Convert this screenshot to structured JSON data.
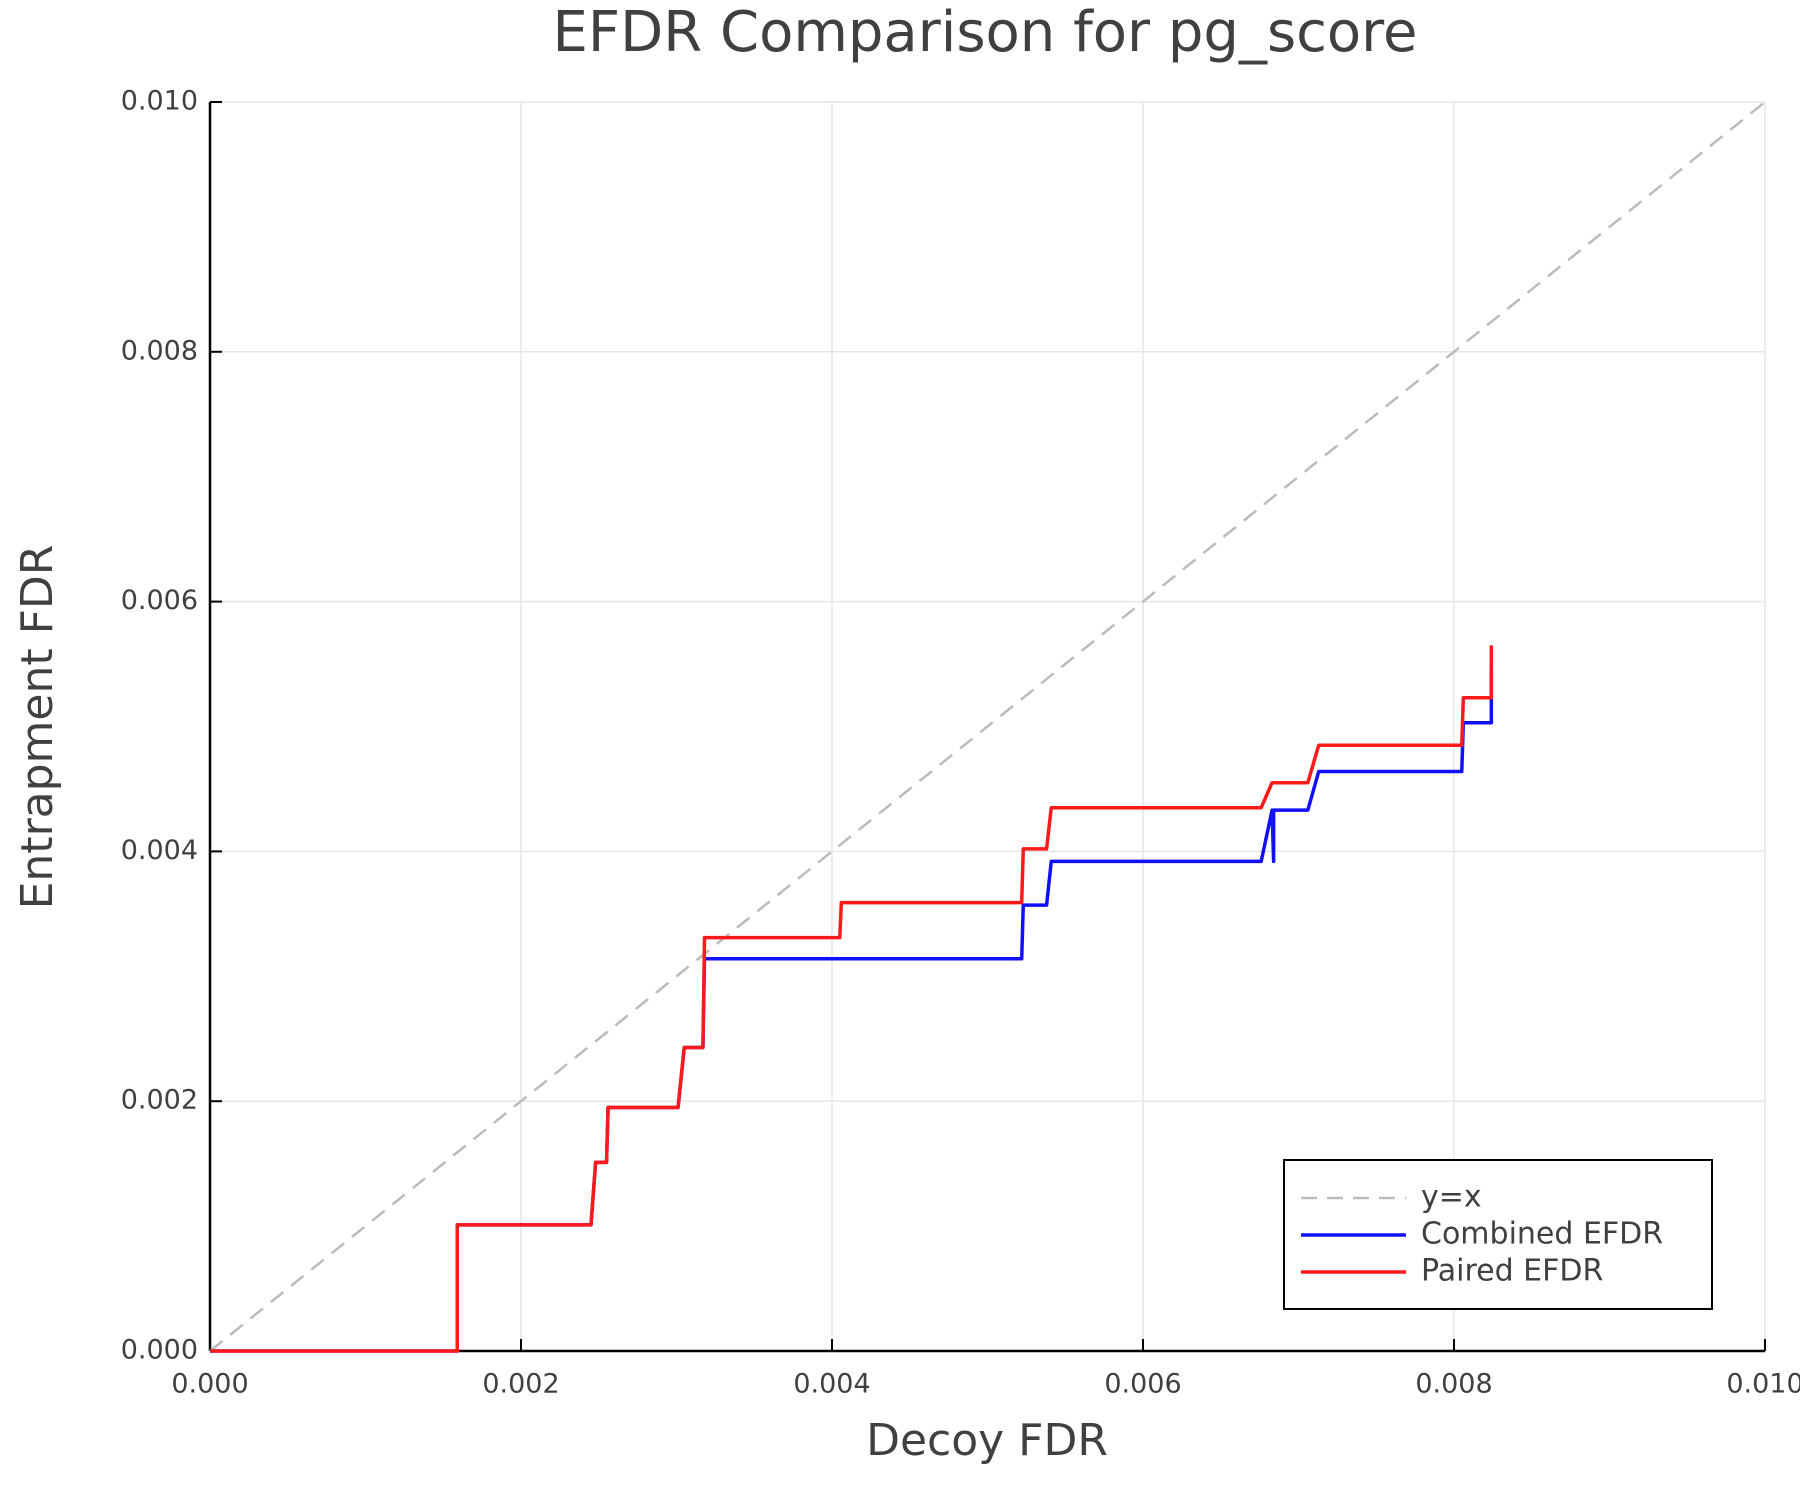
{
  "chart_data": {
    "type": "line",
    "title": "EFDR Comparison for pg_score",
    "x_label": "Decoy FDR",
    "y_label": "Entrapment FDR",
    "xlim": [
      0,
      0.01
    ],
    "ylim": [
      0,
      0.01
    ],
    "xticks": [
      {
        "value": 0,
        "label": "0.000"
      },
      {
        "value": 0.002,
        "label": "0.002"
      },
      {
        "value": 0.004,
        "label": "0.004"
      },
      {
        "value": 0.006,
        "label": "0.006"
      },
      {
        "value": 0.008,
        "label": "0.008"
      },
      {
        "value": 0.01,
        "label": "0.010"
      }
    ],
    "yticks": [
      {
        "value": 0,
        "label": "0.000"
      },
      {
        "value": 0.002,
        "label": "0.002"
      },
      {
        "value": 0.004,
        "label": "0.004"
      },
      {
        "value": 0.006,
        "label": "0.006"
      },
      {
        "value": 0.008,
        "label": "0.008"
      },
      {
        "value": 0.01,
        "label": "0.010"
      }
    ],
    "grid": true,
    "legend": "bottom-right",
    "series": [
      {
        "name": "y=x",
        "color": "#bbbbbb",
        "dash": true,
        "x": [
          0,
          0.01
        ],
        "values": [
          0,
          0.01
        ]
      },
      {
        "name": "Combined EFDR",
        "color": "#1010ff",
        "dash": false,
        "x": [
          0,
          0.00159,
          0.00159,
          0.00245,
          0.00248,
          0.00255,
          0.00256,
          0.00301,
          0.00305,
          0.00317,
          0.00318,
          0.00522,
          0.00523,
          0.00538,
          0.00541,
          0.00676,
          0.00683,
          0.00684,
          0.00684,
          0.00706,
          0.00713,
          0.00805,
          0.00806,
          0.00824,
          0.00824
        ],
        "values": [
          0,
          0,
          0.00101,
          0.00101,
          0.00151,
          0.00151,
          0.00195,
          0.00195,
          0.00243,
          0.00243,
          0.00314,
          0.00314,
          0.00357,
          0.00357,
          0.00392,
          0.00392,
          0.00433,
          0.00392,
          0.00433,
          0.00433,
          0.00464,
          0.00464,
          0.00503,
          0.00503,
          0.00544
        ]
      },
      {
        "name": "Paired EFDR",
        "color": "#ff1a1a",
        "dash": false,
        "x": [
          0,
          0.00159,
          0.00159,
          0.00245,
          0.00248,
          0.00255,
          0.00256,
          0.00301,
          0.00305,
          0.00317,
          0.00318,
          0.00405,
          0.00406,
          0.00522,
          0.00523,
          0.00538,
          0.00541,
          0.00676,
          0.00683,
          0.00706,
          0.00713,
          0.00805,
          0.00806,
          0.00824,
          0.00824
        ],
        "values": [
          0,
          0,
          0.00101,
          0.00101,
          0.00151,
          0.00151,
          0.00195,
          0.00195,
          0.00243,
          0.00243,
          0.00331,
          0.00331,
          0.00359,
          0.00359,
          0.00402,
          0.00402,
          0.00435,
          0.00435,
          0.00455,
          0.00455,
          0.00485,
          0.00485,
          0.00523,
          0.00523,
          0.00565
        ]
      }
    ]
  }
}
